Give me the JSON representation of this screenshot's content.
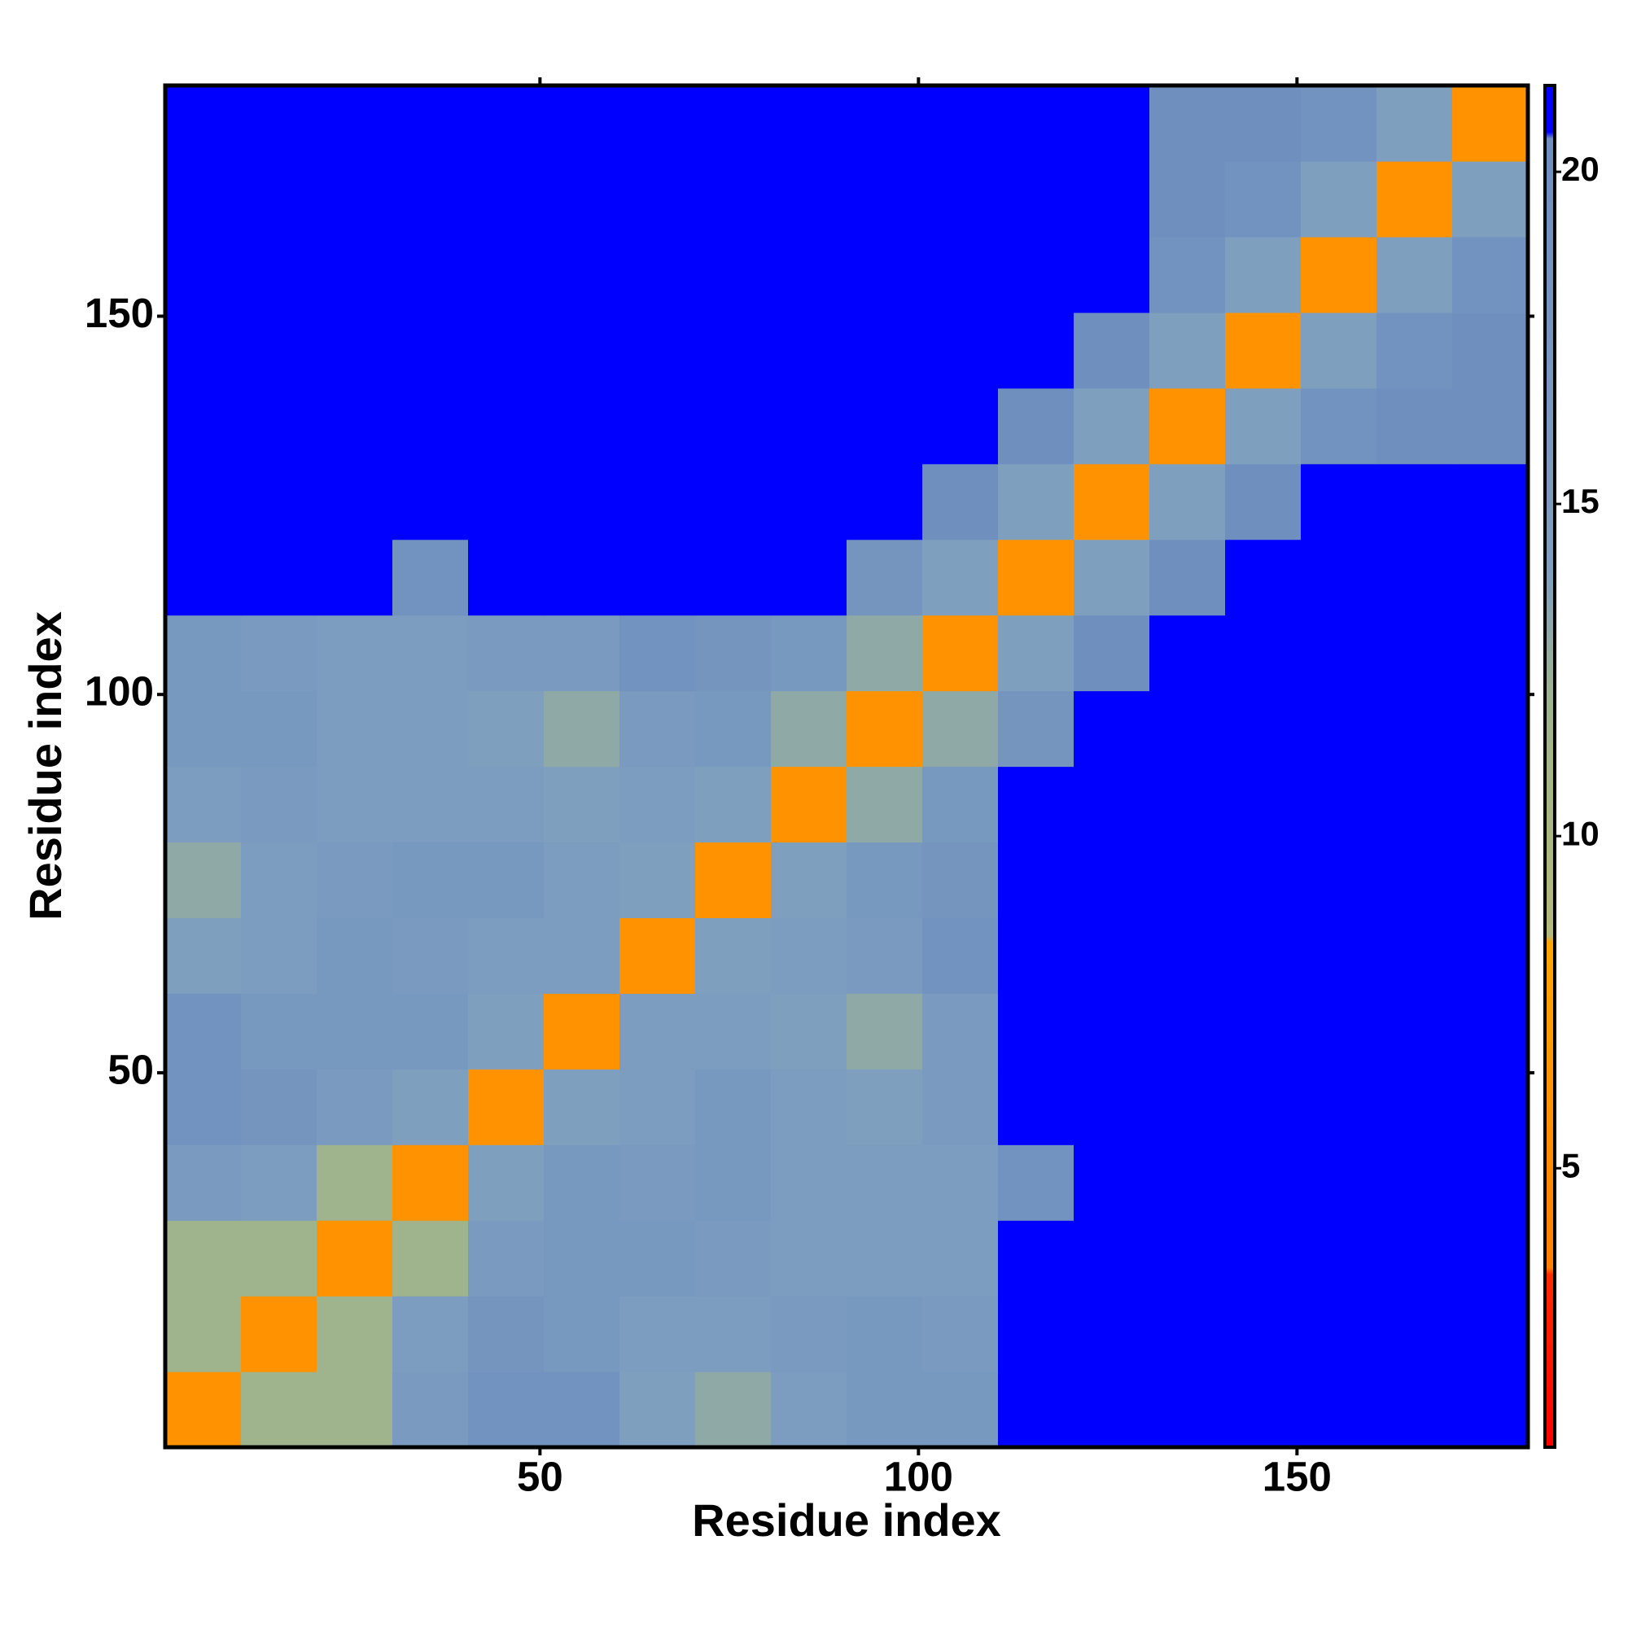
{
  "chart_data": {
    "type": "heatmap",
    "xlabel": "Residue index",
    "ylabel": "Residue index",
    "x": [
      5.5,
      15.5,
      25.5,
      35.5,
      45.5,
      55.5,
      65.5,
      75.5,
      85.5,
      95.5,
      105.5,
      115.5,
      125.5,
      135.5,
      145.5,
      155.5,
      165.5,
      175.5
    ],
    "y": [
      5.5,
      15.5,
      25.5,
      35.5,
      45.5,
      55.5,
      65.5,
      75.5,
      85.5,
      95.5,
      105.5,
      115.5,
      125.5,
      135.5,
      145.5,
      155.5,
      165.5,
      175.5
    ],
    "z": [
      [
        6,
        12,
        12,
        16,
        19,
        19,
        14,
        13,
        15,
        17,
        17,
        21,
        21,
        21,
        21,
        21,
        21,
        21
      ],
      [
        12,
        6,
        12,
        15,
        18,
        17,
        15,
        15,
        16,
        17,
        16,
        21,
        21,
        21,
        21,
        21,
        21,
        21
      ],
      [
        12,
        12,
        6,
        12,
        16,
        17,
        17,
        16,
        15,
        15,
        15,
        21,
        21,
        21,
        21,
        21,
        21,
        21
      ],
      [
        16,
        15,
        12,
        6,
        14,
        17,
        16,
        17,
        15,
        15,
        15,
        19,
        21,
        21,
        21,
        21,
        21,
        21
      ],
      [
        19,
        18,
        16,
        14,
        6,
        14,
        15,
        17,
        15,
        14,
        16,
        21,
        21,
        21,
        21,
        21,
        21,
        21
      ],
      [
        19,
        17,
        17,
        17,
        14,
        6,
        15,
        15,
        14,
        13,
        16,
        21,
        21,
        21,
        21,
        21,
        21,
        21
      ],
      [
        14,
        15,
        17,
        16,
        15,
        15,
        6,
        14,
        15,
        16,
        19,
        21,
        21,
        21,
        21,
        21,
        21,
        21
      ],
      [
        13,
        15,
        16,
        17,
        17,
        15,
        14,
        6,
        14,
        17,
        18,
        21,
        21,
        21,
        21,
        21,
        21,
        21
      ],
      [
        15,
        16,
        15,
        15,
        15,
        14,
        15,
        14,
        6,
        13,
        17,
        21,
        21,
        21,
        21,
        21,
        21,
        21
      ],
      [
        17,
        17,
        15,
        15,
        14,
        13,
        16,
        17,
        13,
        6,
        13,
        18,
        21,
        21,
        21,
        21,
        21,
        21
      ],
      [
        17,
        16,
        15,
        15,
        16,
        16,
        19,
        18,
        17,
        13,
        6,
        14,
        20,
        21,
        21,
        21,
        21,
        21
      ],
      [
        21,
        21,
        21,
        19,
        21,
        21,
        21,
        21,
        21,
        18,
        14,
        6,
        14,
        20,
        21,
        21,
        21,
        21
      ],
      [
        21,
        21,
        21,
        21,
        21,
        21,
        21,
        21,
        21,
        21,
        20,
        14,
        6,
        14,
        20,
        21,
        21,
        21
      ],
      [
        21,
        21,
        21,
        21,
        21,
        21,
        21,
        21,
        21,
        21,
        21,
        20,
        14,
        6,
        14,
        19,
        20,
        20
      ],
      [
        21,
        21,
        21,
        21,
        21,
        21,
        21,
        21,
        21,
        21,
        21,
        21,
        20,
        14,
        6,
        14,
        19,
        20
      ],
      [
        21,
        21,
        21,
        21,
        21,
        21,
        21,
        21,
        21,
        21,
        21,
        21,
        21,
        19,
        14,
        6,
        14,
        19
      ],
      [
        21,
        21,
        21,
        21,
        21,
        21,
        21,
        21,
        21,
        21,
        21,
        21,
        21,
        20,
        19,
        14,
        6,
        14
      ],
      [
        21,
        21,
        21,
        21,
        21,
        21,
        21,
        21,
        21,
        21,
        21,
        21,
        21,
        20,
        20,
        19,
        14,
        6
      ]
    ],
    "xlim": [
      0.5,
      180.5
    ],
    "ylim": [
      0.5,
      180.5
    ],
    "xticks": [
      50,
      100,
      150
    ],
    "yticks": [
      50,
      100,
      150
    ],
    "zlim": [
      0.8,
      21.3
    ],
    "zticks": [
      5,
      10,
      15,
      20
    ],
    "colorscale": [
      [
        0.8,
        "#ff0000"
      ],
      [
        3.4,
        "#ff2a00"
      ],
      [
        3.5,
        "#ff7f00"
      ],
      [
        8.4,
        "#ffa500"
      ],
      [
        8.5,
        "#b4b87c"
      ],
      [
        12,
        "#9fb48c"
      ],
      [
        14,
        "#7f9fbf"
      ],
      [
        20.5,
        "#6e8fbf"
      ],
      [
        20.6,
        "#0000ff"
      ],
      [
        21.3,
        "#0000ff"
      ]
    ]
  }
}
